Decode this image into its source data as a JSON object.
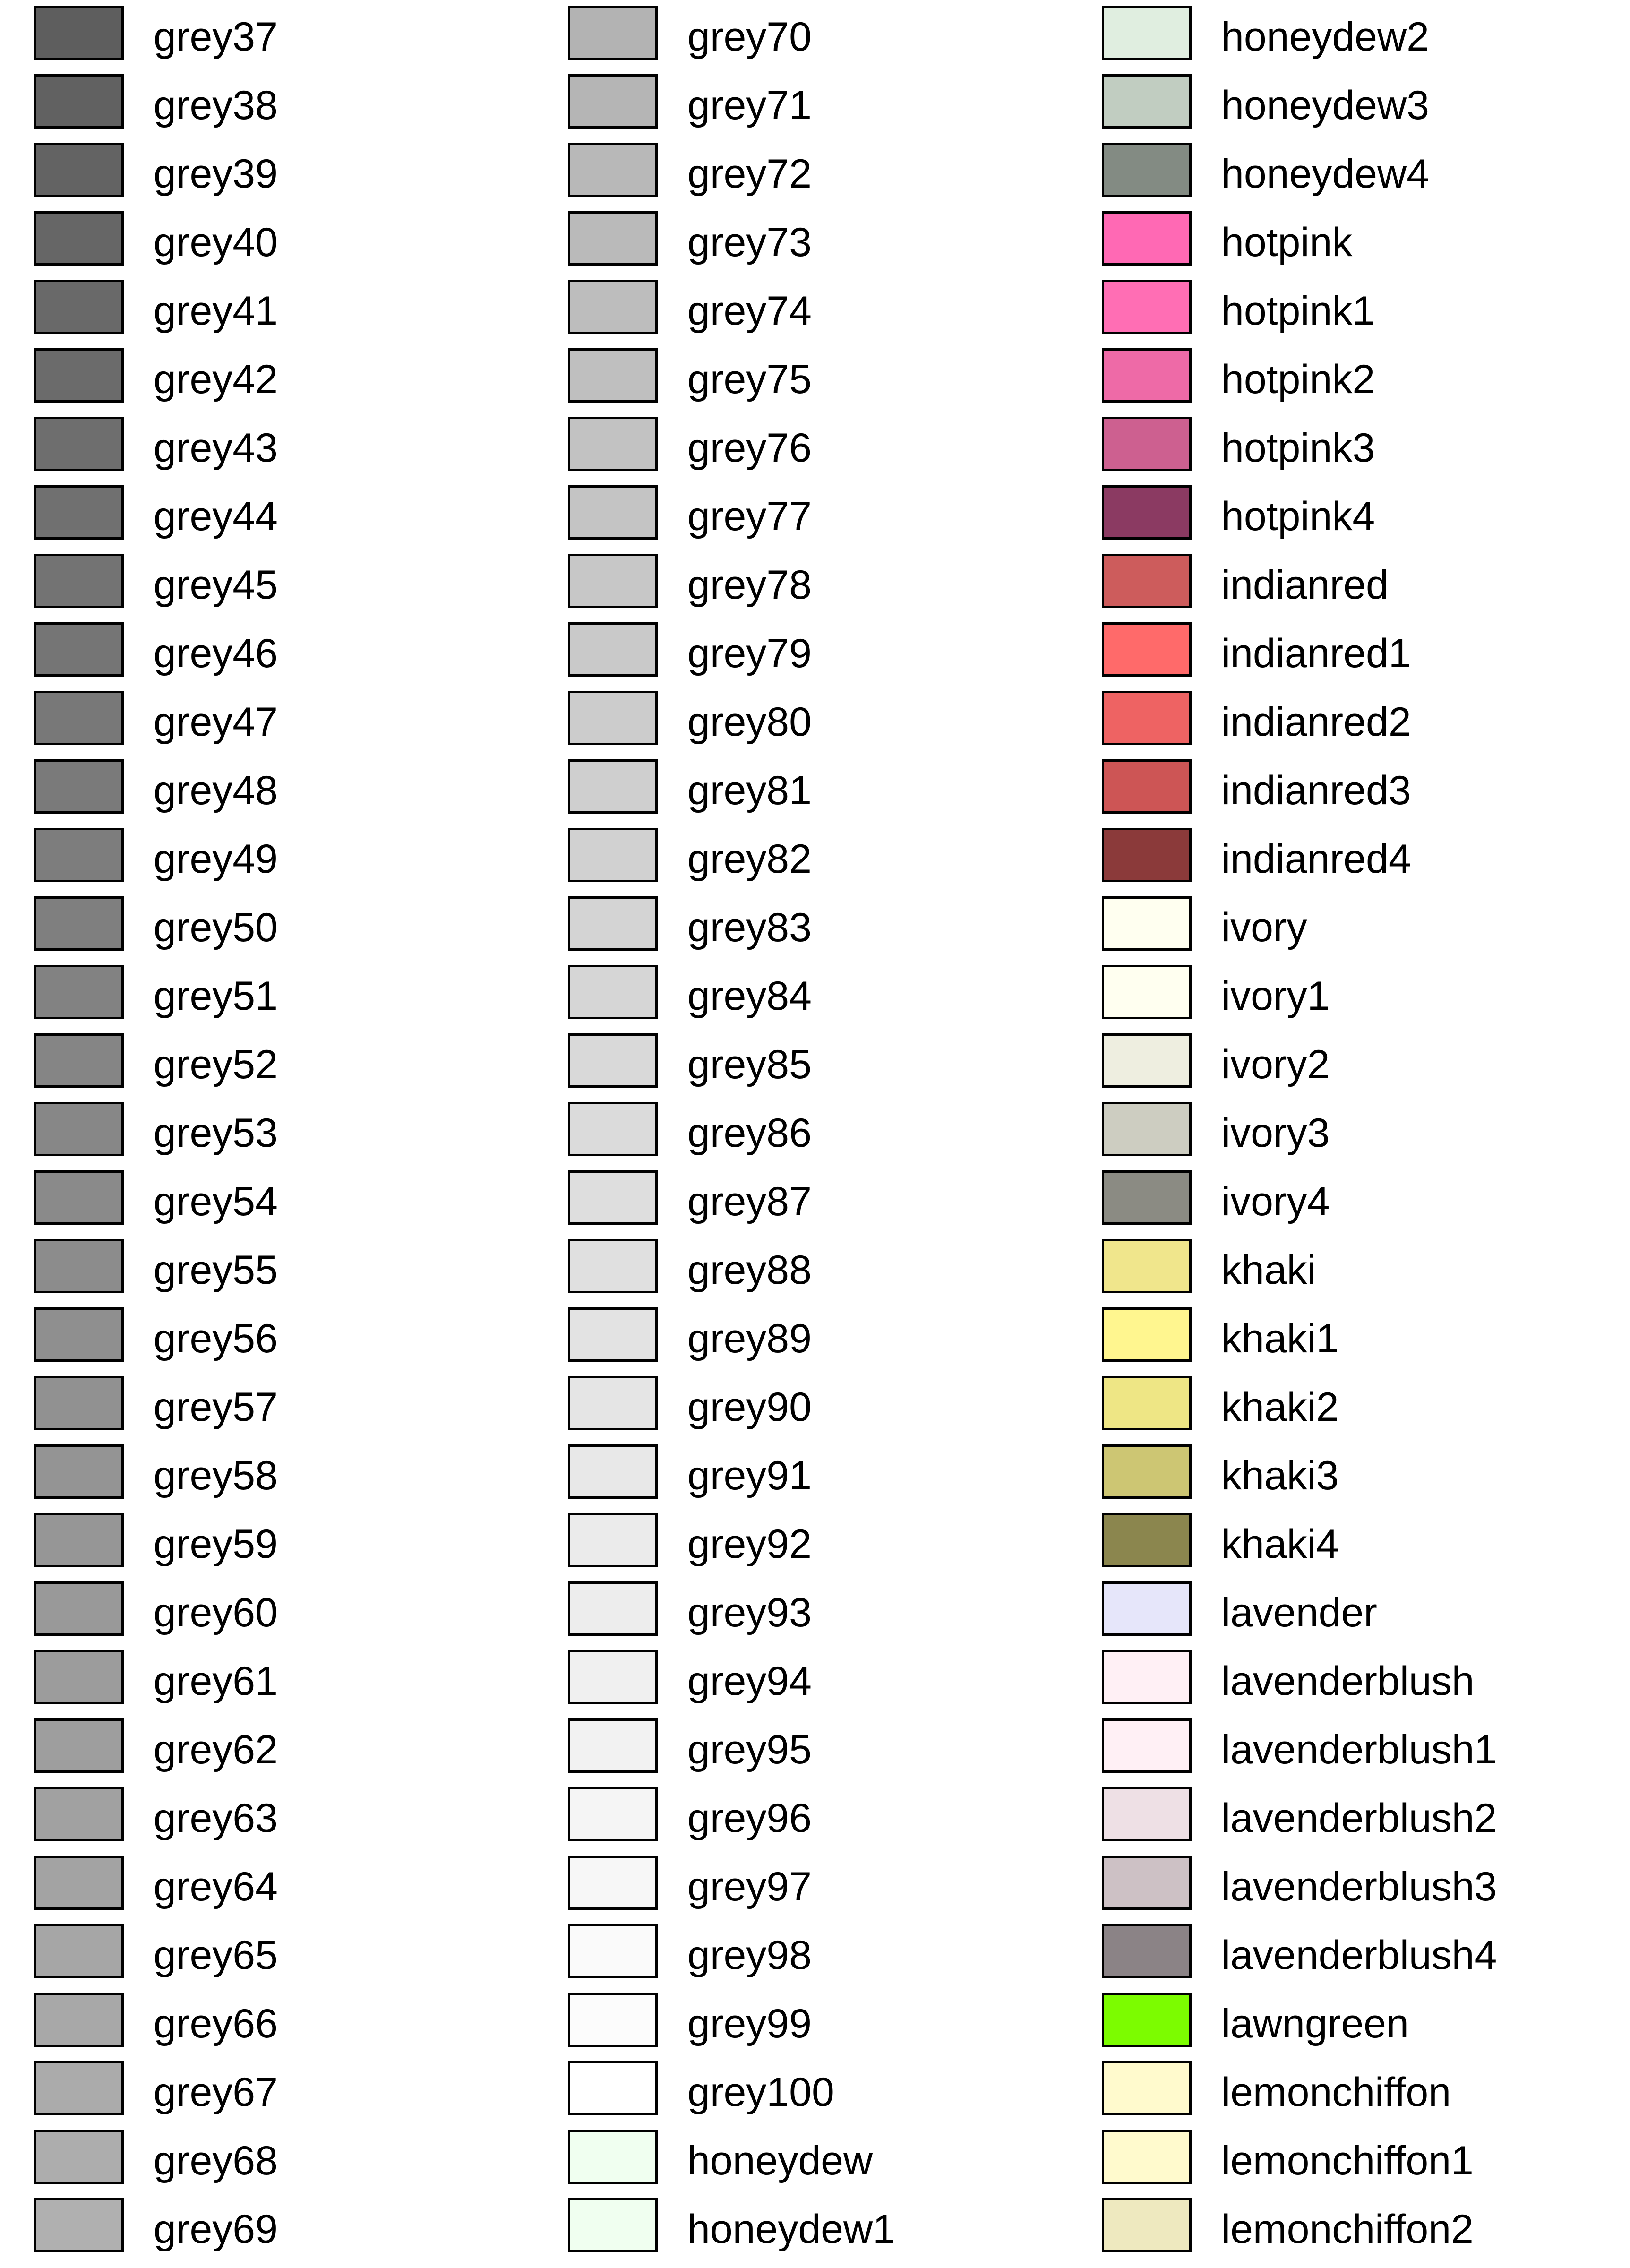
{
  "columns": [
    {
      "entries": [
        {
          "name": "grey37",
          "color": "#5e5e5e"
        },
        {
          "name": "grey38",
          "color": "#616161"
        },
        {
          "name": "grey39",
          "color": "#636363"
        },
        {
          "name": "grey40",
          "color": "#666666"
        },
        {
          "name": "grey41",
          "color": "#696969"
        },
        {
          "name": "grey42",
          "color": "#6b6b6b"
        },
        {
          "name": "grey43",
          "color": "#6e6e6e"
        },
        {
          "name": "grey44",
          "color": "#707070"
        },
        {
          "name": "grey45",
          "color": "#737373"
        },
        {
          "name": "grey46",
          "color": "#757575"
        },
        {
          "name": "grey47",
          "color": "#787878"
        },
        {
          "name": "grey48",
          "color": "#7a7a7a"
        },
        {
          "name": "grey49",
          "color": "#7d7d7d"
        },
        {
          "name": "grey50",
          "color": "#7f7f7f"
        },
        {
          "name": "grey51",
          "color": "#828282"
        },
        {
          "name": "grey52",
          "color": "#858585"
        },
        {
          "name": "grey53",
          "color": "#878787"
        },
        {
          "name": "grey54",
          "color": "#8a8a8a"
        },
        {
          "name": "grey55",
          "color": "#8c8c8c"
        },
        {
          "name": "grey56",
          "color": "#8f8f8f"
        },
        {
          "name": "grey57",
          "color": "#919191"
        },
        {
          "name": "grey58",
          "color": "#949494"
        },
        {
          "name": "grey59",
          "color": "#969696"
        },
        {
          "name": "grey60",
          "color": "#999999"
        },
        {
          "name": "grey61",
          "color": "#9c9c9c"
        },
        {
          "name": "grey62",
          "color": "#9e9e9e"
        },
        {
          "name": "grey63",
          "color": "#a1a1a1"
        },
        {
          "name": "grey64",
          "color": "#a3a3a3"
        },
        {
          "name": "grey65",
          "color": "#a6a6a6"
        },
        {
          "name": "grey66",
          "color": "#a8a8a8"
        },
        {
          "name": "grey67",
          "color": "#ababab"
        },
        {
          "name": "grey68",
          "color": "#adadad"
        },
        {
          "name": "grey69",
          "color": "#b0b0b0"
        }
      ]
    },
    {
      "entries": [
        {
          "name": "grey70",
          "color": "#b3b3b3"
        },
        {
          "name": "grey71",
          "color": "#b5b5b5"
        },
        {
          "name": "grey72",
          "color": "#b8b8b8"
        },
        {
          "name": "grey73",
          "color": "#bababa"
        },
        {
          "name": "grey74",
          "color": "#bdbdbd"
        },
        {
          "name": "grey75",
          "color": "#bfbfbf"
        },
        {
          "name": "grey76",
          "color": "#c2c2c2"
        },
        {
          "name": "grey77",
          "color": "#c4c4c4"
        },
        {
          "name": "grey78",
          "color": "#c7c7c7"
        },
        {
          "name": "grey79",
          "color": "#c9c9c9"
        },
        {
          "name": "grey80",
          "color": "#cccccc"
        },
        {
          "name": "grey81",
          "color": "#cfcfcf"
        },
        {
          "name": "grey82",
          "color": "#d1d1d1"
        },
        {
          "name": "grey83",
          "color": "#d4d4d4"
        },
        {
          "name": "grey84",
          "color": "#d6d6d6"
        },
        {
          "name": "grey85",
          "color": "#d9d9d9"
        },
        {
          "name": "grey86",
          "color": "#dbdbdb"
        },
        {
          "name": "grey87",
          "color": "#dedede"
        },
        {
          "name": "grey88",
          "color": "#e0e0e0"
        },
        {
          "name": "grey89",
          "color": "#e3e3e3"
        },
        {
          "name": "grey90",
          "color": "#e5e5e5"
        },
        {
          "name": "grey91",
          "color": "#e8e8e8"
        },
        {
          "name": "grey92",
          "color": "#ebebeb"
        },
        {
          "name": "grey93",
          "color": "#ededed"
        },
        {
          "name": "grey94",
          "color": "#f0f0f0"
        },
        {
          "name": "grey95",
          "color": "#f2f2f2"
        },
        {
          "name": "grey96",
          "color": "#f5f5f5"
        },
        {
          "name": "grey97",
          "color": "#f7f7f7"
        },
        {
          "name": "grey98",
          "color": "#fafafa"
        },
        {
          "name": "grey99",
          "color": "#fcfcfc"
        },
        {
          "name": "grey100",
          "color": "#ffffff"
        },
        {
          "name": "honeydew",
          "color": "#f0fff0"
        },
        {
          "name": "honeydew1",
          "color": "#f0fff0"
        }
      ]
    },
    {
      "entries": [
        {
          "name": "honeydew2",
          "color": "#e0eee0"
        },
        {
          "name": "honeydew3",
          "color": "#c1cdc1"
        },
        {
          "name": "honeydew4",
          "color": "#838b83"
        },
        {
          "name": "hotpink",
          "color": "#ff69b4"
        },
        {
          "name": "hotpink1",
          "color": "#ff6eb4"
        },
        {
          "name": "hotpink2",
          "color": "#ee6aa7"
        },
        {
          "name": "hotpink3",
          "color": "#cd6090"
        },
        {
          "name": "hotpink4",
          "color": "#8b3a62"
        },
        {
          "name": "indianred",
          "color": "#cd5c5c"
        },
        {
          "name": "indianred1",
          "color": "#ff6a6a"
        },
        {
          "name": "indianred2",
          "color": "#ee6363"
        },
        {
          "name": "indianred3",
          "color": "#cd5555"
        },
        {
          "name": "indianred4",
          "color": "#8b3a3a"
        },
        {
          "name": "ivory",
          "color": "#fffff0"
        },
        {
          "name": "ivory1",
          "color": "#fffff0"
        },
        {
          "name": "ivory2",
          "color": "#eeeee0"
        },
        {
          "name": "ivory3",
          "color": "#cdcdc1"
        },
        {
          "name": "ivory4",
          "color": "#8b8b83"
        },
        {
          "name": "khaki",
          "color": "#f0e68c"
        },
        {
          "name": "khaki1",
          "color": "#fff68f"
        },
        {
          "name": "khaki2",
          "color": "#eee685"
        },
        {
          "name": "khaki3",
          "color": "#cdc673"
        },
        {
          "name": "khaki4",
          "color": "#8b864e"
        },
        {
          "name": "lavender",
          "color": "#e6e6fa"
        },
        {
          "name": "lavenderblush",
          "color": "#fff0f5"
        },
        {
          "name": "lavenderblush1",
          "color": "#fff0f5"
        },
        {
          "name": "lavenderblush2",
          "color": "#eee0e5"
        },
        {
          "name": "lavenderblush3",
          "color": "#cdc1c5"
        },
        {
          "name": "lavenderblush4",
          "color": "#8b8386"
        },
        {
          "name": "lawngreen",
          "color": "#7cfc00"
        },
        {
          "name": "lemonchiffon",
          "color": "#fffacd"
        },
        {
          "name": "lemonchiffon1",
          "color": "#fffacd"
        },
        {
          "name": "lemonchiffon2",
          "color": "#eee9bf"
        }
      ]
    }
  ]
}
